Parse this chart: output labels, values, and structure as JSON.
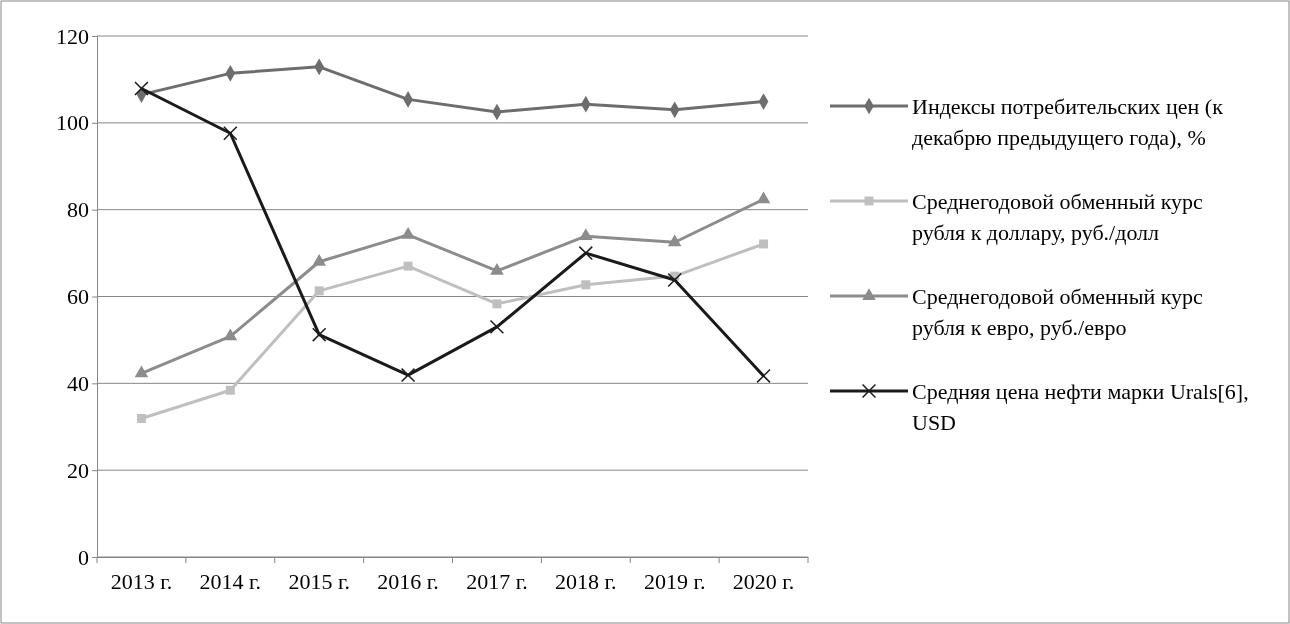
{
  "chart_data": {
    "type": "line",
    "categories": [
      "2013 г.",
      "2014 г.",
      "2015 г.",
      "2016 г.",
      "2017 г.",
      "2018 г.",
      "2019 г.",
      "2020 г."
    ],
    "ylim": [
      0,
      120
    ],
    "yticks": [
      0,
      20,
      40,
      60,
      80,
      100,
      120
    ],
    "grid": "y",
    "legend": "right",
    "series": [
      {
        "name": "Индексы потребительских цен (к декабрю предыдущего года), %",
        "color": "#6d6d6d",
        "marker": "diamond",
        "values": [
          106.5,
          111.4,
          112.9,
          105.4,
          102.5,
          104.3,
          103.0,
          104.9
        ]
      },
      {
        "name": "Среднегодовой обменный курс рубля к доллару, руб./долл",
        "color": "#bfbfbf",
        "marker": "square",
        "values": [
          31.9,
          38.4,
          61.3,
          67.0,
          58.3,
          62.7,
          64.7,
          72.1
        ]
      },
      {
        "name": "Среднегодовой обменный курс рубля к евро, руб./евро",
        "color": "#8c8c8c",
        "marker": "triangle",
        "values": [
          42.3,
          50.8,
          68.0,
          74.2,
          65.9,
          73.9,
          72.5,
          82.4
        ]
      },
      {
        "name": "Средняя цена нефти марки Urals[6], USD",
        "color": "#1a1a1a",
        "marker": "cross",
        "values": [
          107.9,
          97.6,
          51.2,
          41.9,
          53.0,
          70.0,
          63.8,
          41.7
        ]
      }
    ]
  }
}
